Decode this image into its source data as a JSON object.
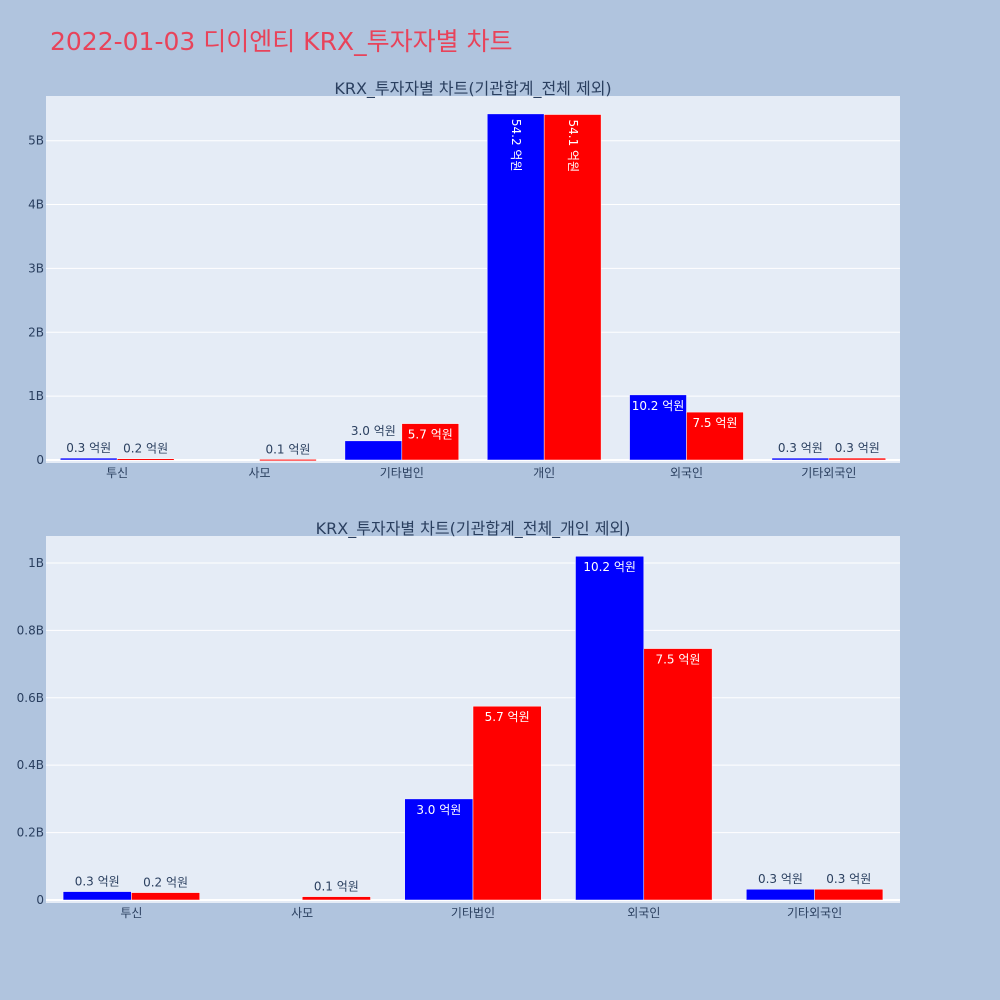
{
  "page_title": "2022-01-03 디이엔티 KRX_투자자별 차트",
  "colors": {
    "background": "#b0c4de",
    "plot_bg": "#e5ecf6",
    "title": "#e8435a",
    "series_a": "#0000ff",
    "series_b": "#ff0000"
  },
  "chart_data": [
    {
      "type": "bar",
      "title": "KRX_투자자별 차트(기관합계_전체 제외)",
      "categories": [
        "투신",
        "사모",
        "기타법인",
        "개인",
        "외국인",
        "기타외국인"
      ],
      "series": [
        {
          "color": "#0000ff",
          "values": [
            30000000,
            0,
            300000000,
            5420000000,
            1020000000,
            30000000
          ],
          "labels": [
            "0.3 억원",
            "",
            "3.0 억원",
            "54.2 억원",
            "10.2 억원",
            "0.3 억원"
          ]
        },
        {
          "color": "#ff0000",
          "values": [
            20000000,
            10000000,
            570000000,
            5410000000,
            750000000,
            30000000
          ],
          "labels": [
            "0.2 억원",
            "0.1 억원",
            "5.7 억원",
            "54.1 억원",
            "7.5 억원",
            "0.3 억원"
          ]
        }
      ],
      "yticks": [
        0,
        1000000000,
        2000000000,
        3000000000,
        4000000000,
        5000000000
      ],
      "ytick_labels": [
        "0",
        "1B",
        "2B",
        "3B",
        "4B",
        "5B"
      ],
      "ylim": [
        0,
        5700000000
      ],
      "grid": true
    },
    {
      "type": "bar",
      "title": "KRX_투자자별 차트(기관합계_전체_개인 제외)",
      "categories": [
        "투신",
        "사모",
        "기타법인",
        "외국인",
        "기타외국인"
      ],
      "series": [
        {
          "color": "#0000ff",
          "values": [
            25000000,
            0,
            300000000,
            1020000000,
            32000000
          ],
          "labels": [
            "0.3 억원",
            "",
            "3.0 억원",
            "10.2 억원",
            "0.3 억원"
          ]
        },
        {
          "color": "#ff0000",
          "values": [
            22000000,
            10000000,
            575000000,
            746000000,
            32000000
          ],
          "labels": [
            "0.2 억원",
            "0.1 억원",
            "5.7 억원",
            "7.5 억원",
            "0.3 억원"
          ]
        }
      ],
      "yticks": [
        0,
        200000000,
        400000000,
        600000000,
        800000000,
        1000000000
      ],
      "ytick_labels": [
        "0",
        "0.2B",
        "0.4B",
        "0.6B",
        "0.8B",
        "1B"
      ],
      "ylim": [
        0,
        1080000000
      ],
      "grid": true
    }
  ]
}
